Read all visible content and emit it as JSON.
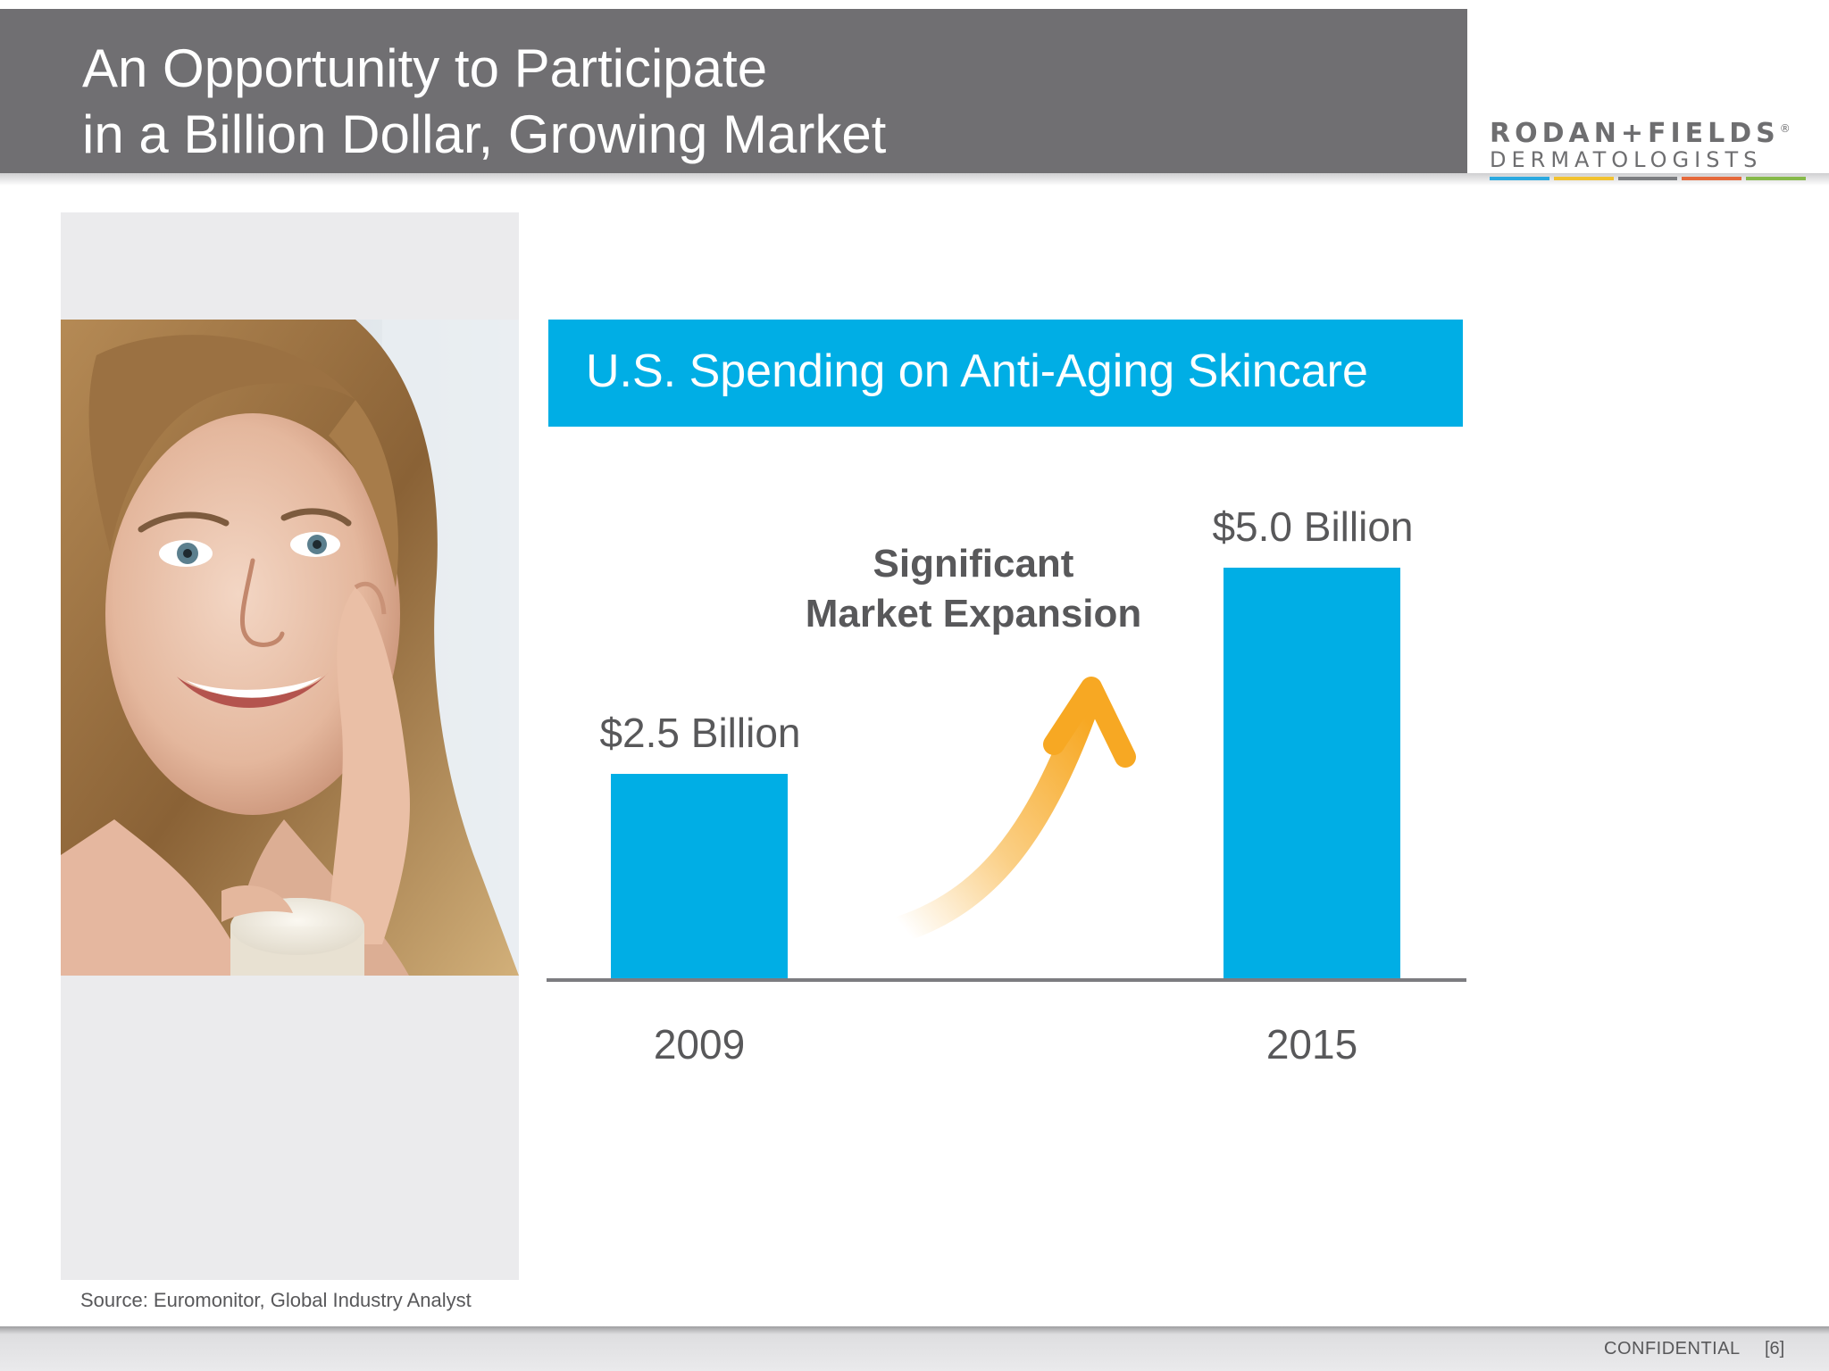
{
  "slide": {
    "title_line1": "An Opportunity to Participate",
    "title_line2": "in a Billion Dollar, Growing Market",
    "logo": {
      "line1": "RODAN+FIELDS",
      "registered_mark": "®",
      "line2": "DERMATOLOGISTS",
      "stripe_colors": [
        "#2ba9e0",
        "#f2c230",
        "#7c7d80",
        "#e56a3c",
        "#86b94a"
      ]
    },
    "photo_description_icon": "woman-applying-cream-photo",
    "source_note": "Source: Euromonitor, Global Industry Analyst",
    "footer": {
      "confidential": "CONFIDENTIAL",
      "page_number": "[6]"
    }
  },
  "colors": {
    "header_gray": "#706f72",
    "accent_blue": "#00aee5",
    "arrow_orange": "#f7a823",
    "text_gray": "#58585a"
  },
  "chart_data": {
    "type": "bar",
    "title": "U.S. Spending on Anti-Aging Skincare",
    "categories": [
      "2009",
      "2015"
    ],
    "values": [
      2.5,
      5.0
    ],
    "data_labels": [
      "$2.5 Billion",
      "$5.0 Billion"
    ],
    "unit": "Billion USD",
    "ylim": [
      0,
      5.0
    ],
    "xlabel": "",
    "ylabel": "",
    "grid": false,
    "legend": "none",
    "annotation": {
      "line1": "Significant",
      "line2": "Market Expansion",
      "icon": "upward-curved-arrow-icon"
    }
  }
}
